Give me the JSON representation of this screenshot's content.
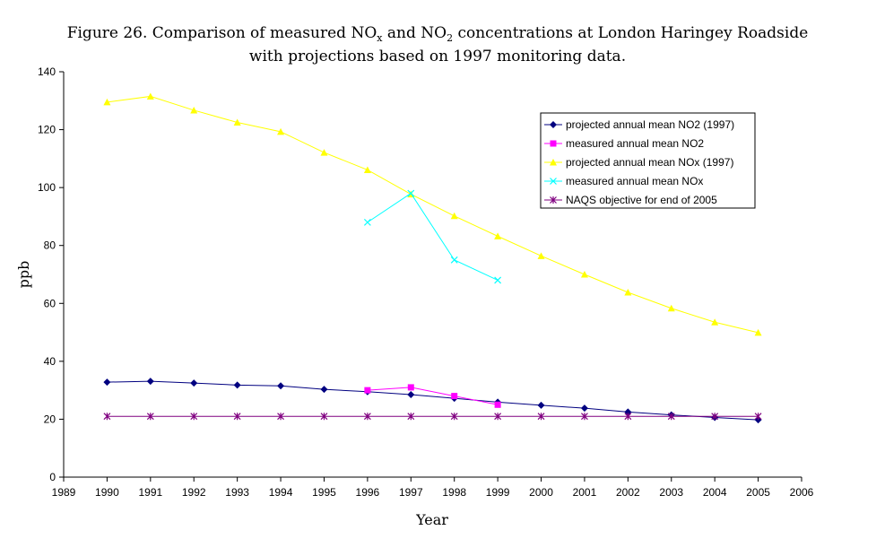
{
  "chart_data": {
    "type": "line",
    "title_line1_main": "Figure 26. Comparison of measured NO",
    "title_line1_sub1": "x",
    "title_line1_mid": " and NO",
    "title_line1_sub2": "2",
    "title_line1_end": " concentrations at London Haringey Roadside",
    "title_line2": "with projections based on 1997 monitoring data.",
    "xlabel": "Year",
    "ylabel": "ppb",
    "xlim": [
      1989,
      2006
    ],
    "ylim": [
      0,
      140
    ],
    "xticks": [
      "1989",
      "1990",
      "1991",
      "1992",
      "1993",
      "1994",
      "1995",
      "1996",
      "1997",
      "1998",
      "1999",
      "2000",
      "2001",
      "2002",
      "2003",
      "2004",
      "2005",
      "2006"
    ],
    "yticks": [
      "0",
      "20",
      "40",
      "60",
      "80",
      "100",
      "120",
      "140"
    ],
    "grid": false,
    "legend_position": "top-right",
    "series": [
      {
        "name": "projected annual mean NO2 (1997)",
        "color": "#000080",
        "marker": "diamond",
        "x": [
          1990,
          1991,
          1992,
          1993,
          1994,
          1995,
          1996,
          1997,
          1998,
          1999,
          2000,
          2001,
          2002,
          2003,
          2004,
          2005
        ],
        "y": [
          32.8,
          33.1,
          32.5,
          31.8,
          31.5,
          30.3,
          29.5,
          28.5,
          27.2,
          25.9,
          24.8,
          23.8,
          22.5,
          21.5,
          20.6,
          19.8
        ]
      },
      {
        "name": "measured annual mean NO2",
        "color": "#ff00ff",
        "marker": "square",
        "x": [
          1996,
          1997,
          1998,
          1999
        ],
        "y": [
          30,
          31,
          28,
          25
        ]
      },
      {
        "name": "projected annual mean NOx (1997)",
        "color": "#ffff00",
        "marker": "triangle",
        "x": [
          1990,
          1991,
          1992,
          1993,
          1994,
          1995,
          1996,
          1997,
          1998,
          1999,
          2000,
          2001,
          2002,
          2003,
          2004,
          2005
        ],
        "y": [
          129.5,
          131.5,
          126.7,
          122.5,
          119.3,
          112.1,
          106.1,
          97.7,
          90.2,
          83.2,
          76.4,
          70,
          63.8,
          58.3,
          53.5,
          49.9
        ]
      },
      {
        "name": "measured annual mean NOx",
        "color": "#00ffff",
        "marker": "x",
        "x": [
          1996,
          1997,
          1998,
          1999
        ],
        "y": [
          88,
          98,
          75,
          68
        ]
      },
      {
        "name": "NAQS objective for end of 2005",
        "color": "#800080",
        "marker": "star",
        "x": [
          1990,
          1991,
          1992,
          1993,
          1994,
          1995,
          1996,
          1997,
          1998,
          1999,
          2000,
          2001,
          2002,
          2003,
          2004,
          2005
        ],
        "y": [
          21,
          21,
          21,
          21,
          21,
          21,
          21,
          21,
          21,
          21,
          21,
          21,
          21,
          21,
          21,
          21
        ]
      }
    ]
  }
}
